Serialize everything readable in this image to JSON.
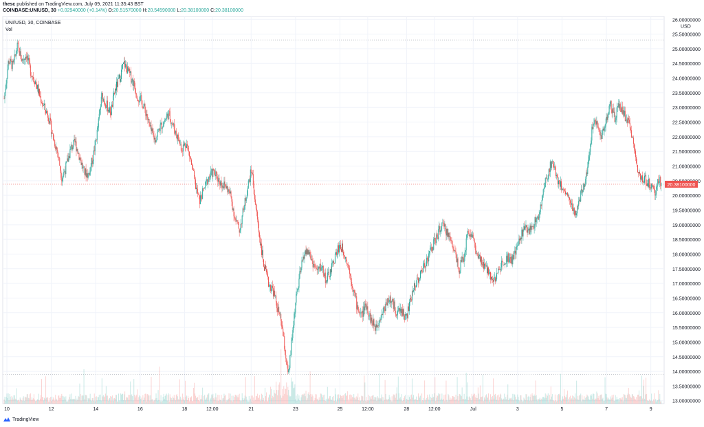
{
  "header": {
    "publisher": "thesc",
    "published_text": "published on TradingView.com, July 09, 2021 11:35:43 BST",
    "symbol_line": "COINBASE:UNIUSD, 30",
    "change": "+0.02940000 (+0.14%)",
    "o_label": "O:",
    "o_value": "20.51570000",
    "h_label": "H:",
    "h_value": "20.54590000",
    "l_label": "L:",
    "l_value": "20.38100000",
    "c_label": "C:",
    "c_value": "20.38100000"
  },
  "legend": {
    "series_title": "UNI/USD, 30, COINBASE",
    "volume_label": "Vol"
  },
  "price_scale": {
    "currency": "USD",
    "last_price_label": "20.38100000",
    "last_price_color": "#ef5350",
    "ticks": [
      "26.00000000",
      "25.50000000",
      "25.00000000",
      "24.50000000",
      "24.00000000",
      "23.50000000",
      "23.00000000",
      "22.50000000",
      "22.00000000",
      "21.50000000",
      "21.00000000",
      "20.50000000",
      "20.00000000",
      "19.50000000",
      "19.00000000",
      "18.50000000",
      "18.00000000",
      "17.50000000",
      "17.00000000",
      "16.50000000",
      "16.00000000",
      "15.50000000",
      "15.00000000",
      "14.50000000",
      "14.00000000",
      "13.50000000",
      "13.00000000"
    ]
  },
  "time_scale": {
    "ticks": [
      {
        "label": "10",
        "x": 0.25
      },
      {
        "label": "12",
        "x": 4.25
      },
      {
        "label": "14",
        "x": 8.25
      },
      {
        "label": "16",
        "x": 12.25
      },
      {
        "label": "18",
        "x": 16.25
      },
      {
        "label": "12:00",
        "x": 18.75
      },
      {
        "label": "21",
        "x": 22.25
      },
      {
        "label": "23",
        "x": 26.25
      },
      {
        "label": "25",
        "x": 30.25
      },
      {
        "label": "12:00",
        "x": 32.75
      },
      {
        "label": "28",
        "x": 36.25
      },
      {
        "label": "12:00",
        "x": 38.75
      },
      {
        "label": "Jul",
        "x": 42.25
      },
      {
        "label": "3",
        "x": 46.25
      },
      {
        "label": "5",
        "x": 50.25
      },
      {
        "label": "7",
        "x": 54.25
      },
      {
        "label": "9",
        "x": 58.25
      }
    ]
  },
  "branding": {
    "name": "TradingView"
  },
  "colors": {
    "up": "#26a69a",
    "down": "#ef5350",
    "grid": "#f0f3fa",
    "text": "#131722"
  },
  "chart_data": {
    "type": "candlestick",
    "symbol": "UNI/USD",
    "interval": "30",
    "exchange": "COINBASE",
    "y_range": [
      12.9,
      26.1
    ],
    "x_range_days": [
      0,
      59.2
    ],
    "last_close": 20.381,
    "dotted_levels": [
      25.3,
      13.9
    ],
    "price_path": [
      [
        0,
        23.3
      ],
      [
        0.4,
        24.6
      ],
      [
        0.8,
        24.4
      ],
      [
        1.2,
        25.1
      ],
      [
        1.6,
        24.6
      ],
      [
        2.0,
        24.8
      ],
      [
        2.4,
        24.2
      ],
      [
        2.8,
        23.9
      ],
      [
        3.2,
        23.4
      ],
      [
        3.6,
        23.0
      ],
      [
        4.0,
        22.7
      ],
      [
        4.4,
        22.0
      ],
      [
        4.8,
        21.5
      ],
      [
        5.2,
        20.6
      ],
      [
        5.6,
        21.0
      ],
      [
        6.0,
        21.6
      ],
      [
        6.4,
        21.8
      ],
      [
        6.8,
        21.3
      ],
      [
        7.2,
        20.8
      ],
      [
        7.6,
        20.7
      ],
      [
        8.0,
        21.3
      ],
      [
        8.4,
        22.2
      ],
      [
        8.8,
        23.4
      ],
      [
        9.2,
        23.1
      ],
      [
        9.6,
        22.8
      ],
      [
        10.0,
        23.6
      ],
      [
        10.4,
        24.0
      ],
      [
        10.8,
        24.5
      ],
      [
        11.2,
        24.2
      ],
      [
        11.6,
        23.9
      ],
      [
        12.0,
        23.4
      ],
      [
        12.4,
        23.2
      ],
      [
        12.8,
        22.8
      ],
      [
        13.2,
        22.2
      ],
      [
        13.6,
        21.9
      ],
      [
        14.0,
        22.3
      ],
      [
        14.4,
        22.5
      ],
      [
        14.8,
        22.8
      ],
      [
        15.2,
        22.4
      ],
      [
        15.6,
        22.0
      ],
      [
        16.0,
        21.6
      ],
      [
        16.4,
        21.8
      ],
      [
        16.8,
        21.2
      ],
      [
        17.2,
        20.4
      ],
      [
        17.6,
        19.8
      ],
      [
        18.0,
        20.2
      ],
      [
        18.4,
        20.6
      ],
      [
        18.8,
        20.8
      ],
      [
        19.2,
        20.6
      ],
      [
        19.6,
        20.4
      ],
      [
        20.0,
        20.3
      ],
      [
        20.4,
        20.0
      ],
      [
        20.8,
        19.2
      ],
      [
        21.2,
        18.8
      ],
      [
        21.6,
        19.6
      ],
      [
        22.0,
        20.4
      ],
      [
        22.3,
        20.9
      ],
      [
        22.6,
        19.8
      ],
      [
        23.0,
        18.6
      ],
      [
        23.4,
        17.6
      ],
      [
        23.8,
        17.0
      ],
      [
        24.2,
        16.8
      ],
      [
        24.6,
        16.2
      ],
      [
        25.0,
        15.6
      ],
      [
        25.4,
        14.4
      ],
      [
        25.6,
        13.8
      ],
      [
        25.9,
        15.0
      ],
      [
        26.2,
        16.2
      ],
      [
        26.6,
        17.2
      ],
      [
        27.0,
        18.0
      ],
      [
        27.4,
        18.1
      ],
      [
        27.8,
        17.7
      ],
      [
        28.2,
        17.4
      ],
      [
        28.6,
        17.6
      ],
      [
        29.0,
        17.1
      ],
      [
        29.4,
        17.4
      ],
      [
        29.8,
        17.9
      ],
      [
        30.2,
        18.3
      ],
      [
        30.6,
        18.1
      ],
      [
        31.0,
        17.6
      ],
      [
        31.4,
        16.9
      ],
      [
        31.8,
        16.2
      ],
      [
        32.2,
        15.9
      ],
      [
        32.6,
        16.3
      ],
      [
        33.0,
        15.8
      ],
      [
        33.4,
        15.5
      ],
      [
        33.8,
        15.8
      ],
      [
        34.2,
        16.1
      ],
      [
        34.6,
        16.5
      ],
      [
        35.0,
        16.3
      ],
      [
        35.4,
        16.0
      ],
      [
        35.8,
        16.1
      ],
      [
        36.2,
        15.8
      ],
      [
        36.6,
        16.4
      ],
      [
        37.0,
        17.0
      ],
      [
        37.4,
        17.2
      ],
      [
        37.8,
        17.6
      ],
      [
        38.2,
        17.9
      ],
      [
        38.6,
        18.3
      ],
      [
        39.0,
        18.6
      ],
      [
        39.4,
        19.0
      ],
      [
        39.8,
        18.8
      ],
      [
        40.2,
        18.5
      ],
      [
        40.6,
        18.1
      ],
      [
        41.0,
        17.5
      ],
      [
        41.4,
        17.9
      ],
      [
        41.8,
        18.8
      ],
      [
        42.2,
        18.6
      ],
      [
        42.6,
        17.9
      ],
      [
        43.0,
        17.7
      ],
      [
        43.4,
        17.5
      ],
      [
        43.8,
        17.3
      ],
      [
        44.2,
        17.1
      ],
      [
        44.6,
        17.5
      ],
      [
        45.0,
        17.8
      ],
      [
        45.4,
        17.9
      ],
      [
        45.8,
        17.8
      ],
      [
        46.2,
        18.2
      ],
      [
        46.6,
        18.7
      ],
      [
        47.0,
        18.9
      ],
      [
        47.4,
        18.8
      ],
      [
        47.8,
        19.1
      ],
      [
        48.2,
        19.3
      ],
      [
        48.6,
        20.2
      ],
      [
        49.0,
        20.8
      ],
      [
        49.4,
        21.2
      ],
      [
        49.8,
        20.6
      ],
      [
        50.2,
        20.3
      ],
      [
        50.6,
        20.1
      ],
      [
        51.0,
        19.8
      ],
      [
        51.4,
        19.3
      ],
      [
        51.8,
        19.8
      ],
      [
        52.2,
        20.3
      ],
      [
        52.6,
        21.1
      ],
      [
        53.0,
        22.4
      ],
      [
        53.4,
        22.6
      ],
      [
        53.8,
        22.0
      ],
      [
        54.2,
        22.5
      ],
      [
        54.6,
        23.1
      ],
      [
        55.0,
        22.6
      ],
      [
        55.4,
        23.1
      ],
      [
        55.8,
        22.8
      ],
      [
        56.2,
        22.5
      ],
      [
        56.6,
        22.0
      ],
      [
        57.0,
        21.0
      ],
      [
        57.4,
        20.6
      ],
      [
        57.8,
        20.5
      ],
      [
        58.2,
        20.4
      ],
      [
        58.6,
        20.0
      ],
      [
        59.0,
        20.6
      ],
      [
        59.2,
        20.38
      ]
    ]
  }
}
